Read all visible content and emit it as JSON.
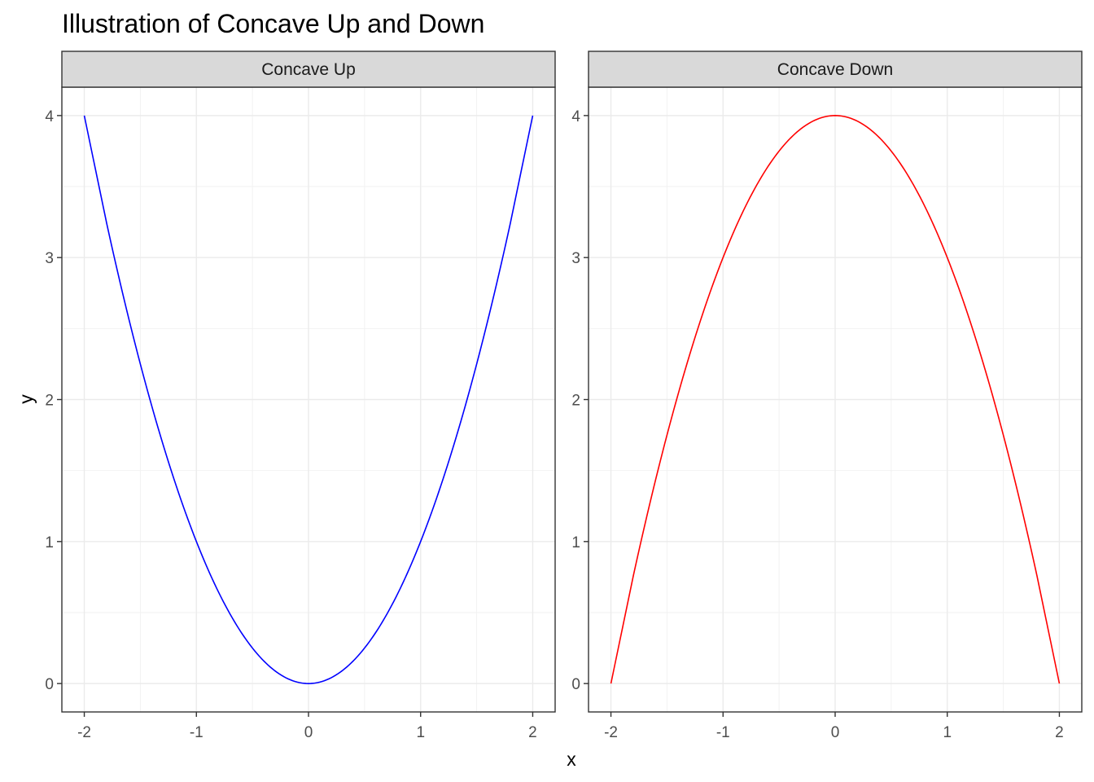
{
  "chart_data": {
    "type": "line",
    "title": "Illustration of Concave Up and Down",
    "xlabel": "x",
    "ylabel": "y",
    "xlim": [
      -2.2,
      2.2
    ],
    "ylim": [
      -0.2,
      4.2
    ],
    "x_ticks": [
      -2,
      -1,
      0,
      1,
      2
    ],
    "y_ticks": [
      0,
      1,
      2,
      3,
      4
    ],
    "grid": true,
    "legend": "none",
    "panels": [
      {
        "strip_label": "Concave Up",
        "color": "#0000FF",
        "x": [
          -2.0,
          -1.8,
          -1.6,
          -1.4,
          -1.2,
          -1.0,
          -0.8,
          -0.6,
          -0.4,
          -0.2,
          0.0,
          0.2,
          0.4,
          0.6,
          0.8,
          1.0,
          1.2,
          1.4,
          1.6,
          1.8,
          2.0
        ],
        "y": [
          4.0,
          3.24,
          2.56,
          1.96,
          1.44,
          1.0,
          0.64,
          0.36,
          0.16,
          0.04,
          0.0,
          0.04,
          0.16,
          0.36,
          0.64,
          1.0,
          1.44,
          1.96,
          2.56,
          3.24,
          4.0
        ]
      },
      {
        "strip_label": "Concave Down",
        "color": "#FF0000",
        "x": [
          -2.0,
          -1.8,
          -1.6,
          -1.4,
          -1.2,
          -1.0,
          -0.8,
          -0.6,
          -0.4,
          -0.2,
          0.0,
          0.2,
          0.4,
          0.6,
          0.8,
          1.0,
          1.2,
          1.4,
          1.6,
          1.8,
          2.0
        ],
        "y": [
          0.0,
          0.76,
          1.44,
          2.04,
          2.56,
          3.0,
          3.36,
          3.64,
          3.84,
          3.96,
          4.0,
          3.96,
          3.84,
          3.64,
          3.36,
          3.0,
          2.56,
          2.04,
          1.44,
          0.76,
          0.0
        ]
      }
    ]
  }
}
